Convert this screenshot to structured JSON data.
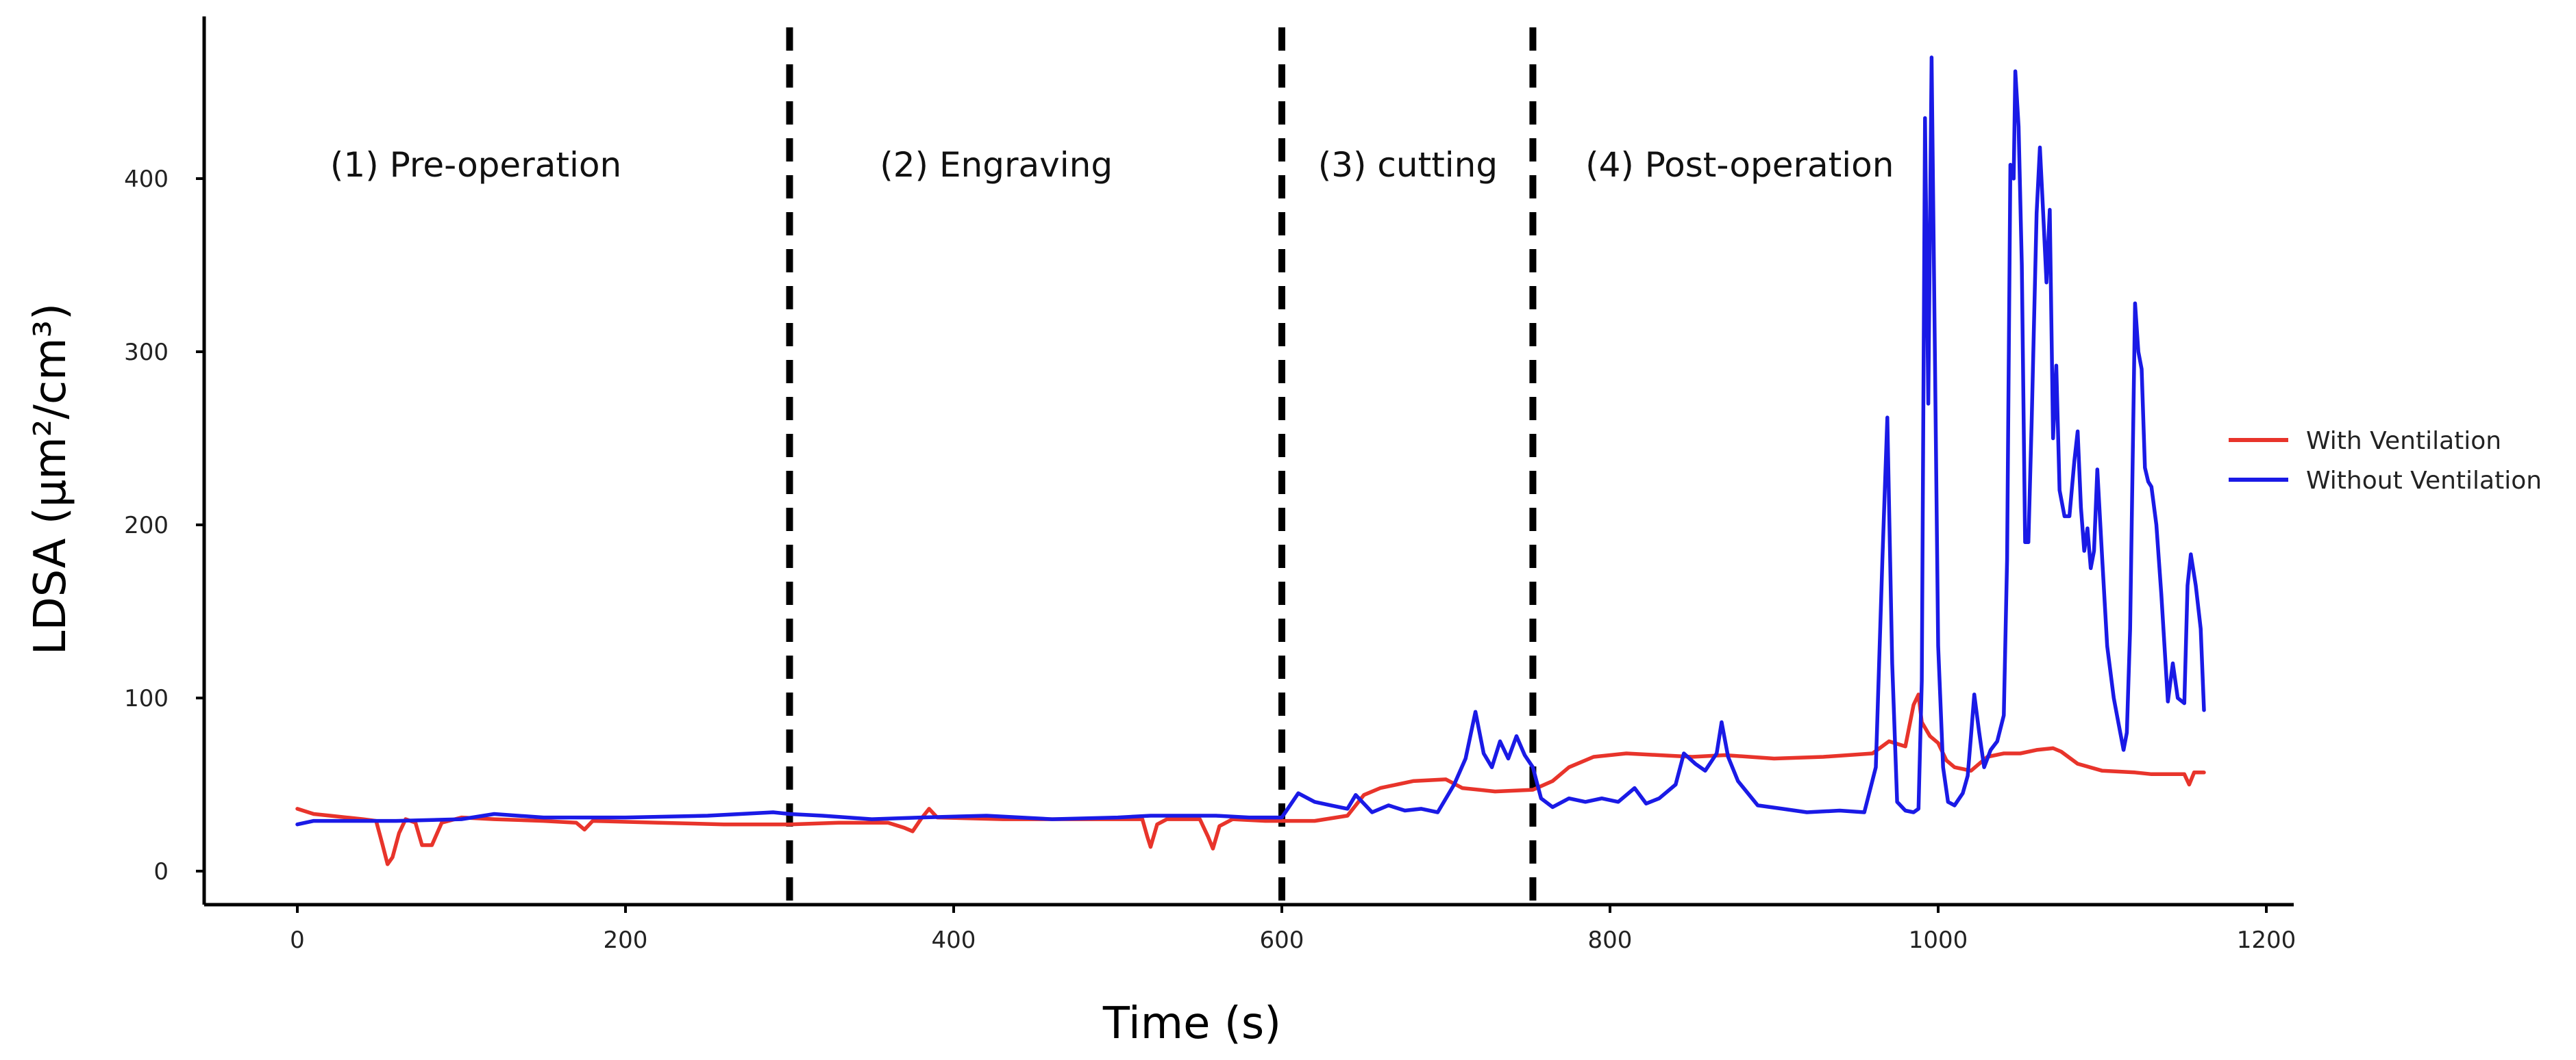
{
  "chart_data": {
    "type": "line",
    "xlabel": "Time (s)",
    "ylabel": "LDSA (μm²/cm³)",
    "xlim": [
      -55,
      1200
    ],
    "ylim": [
      -18,
      480
    ],
    "x_ticks": [
      0,
      200,
      400,
      600,
      800,
      1000,
      1200
    ],
    "y_ticks": [
      0,
      100,
      200,
      300,
      400
    ],
    "phase_boundaries": [
      300,
      600,
      753
    ],
    "phases": [
      {
        "label": "(1) Pre-operation",
        "x_start": 20,
        "y": 408
      },
      {
        "label": "(2) Engraving",
        "x_start": 355,
        "y": 408
      },
      {
        "label": "(3) cutting",
        "x_start": 622,
        "y": 408
      },
      {
        "label": "(4) Post-operation",
        "x_start": 785,
        "y": 408
      }
    ],
    "colors": {
      "with_ventilation": "#e8342b",
      "without_ventilation": "#1a1ae6",
      "axis": "#000000"
    },
    "series": [
      {
        "name": "With Ventilation",
        "color": "#e8342b",
        "points": [
          [
            0,
            36
          ],
          [
            10,
            33
          ],
          [
            20,
            32
          ],
          [
            30,
            31
          ],
          [
            40,
            30
          ],
          [
            48,
            29
          ],
          [
            52,
            15
          ],
          [
            55,
            4
          ],
          [
            58,
            8
          ],
          [
            62,
            22
          ],
          [
            66,
            30
          ],
          [
            72,
            28
          ],
          [
            76,
            15
          ],
          [
            82,
            15
          ],
          [
            88,
            28
          ],
          [
            100,
            31
          ],
          [
            120,
            30
          ],
          [
            150,
            29
          ],
          [
            170,
            28
          ],
          [
            175,
            24
          ],
          [
            180,
            29
          ],
          [
            220,
            28
          ],
          [
            260,
            27
          ],
          [
            300,
            27
          ],
          [
            330,
            28
          ],
          [
            360,
            28
          ],
          [
            370,
            25
          ],
          [
            375,
            23
          ],
          [
            380,
            30
          ],
          [
            385,
            36
          ],
          [
            390,
            31
          ],
          [
            430,
            30
          ],
          [
            480,
            30
          ],
          [
            500,
            30
          ],
          [
            515,
            30
          ],
          [
            518,
            20
          ],
          [
            520,
            14
          ],
          [
            524,
            27
          ],
          [
            530,
            30
          ],
          [
            550,
            30
          ],
          [
            555,
            20
          ],
          [
            558,
            13
          ],
          [
            562,
            26
          ],
          [
            570,
            30
          ],
          [
            590,
            29
          ],
          [
            600,
            29
          ],
          [
            620,
            29
          ],
          [
            640,
            32
          ],
          [
            650,
            44
          ],
          [
            660,
            48
          ],
          [
            680,
            52
          ],
          [
            700,
            53
          ],
          [
            710,
            48
          ],
          [
            730,
            46
          ],
          [
            753,
            47
          ],
          [
            765,
            52
          ],
          [
            775,
            60
          ],
          [
            790,
            66
          ],
          [
            810,
            68
          ],
          [
            830,
            67
          ],
          [
            850,
            66
          ],
          [
            870,
            67
          ],
          [
            900,
            65
          ],
          [
            930,
            66
          ],
          [
            960,
            68
          ],
          [
            970,
            75
          ],
          [
            980,
            72
          ],
          [
            985,
            96
          ],
          [
            988,
            102
          ],
          [
            990,
            86
          ],
          [
            995,
            78
          ],
          [
            1000,
            74
          ],
          [
            1005,
            64
          ],
          [
            1010,
            60
          ],
          [
            1020,
            58
          ],
          [
            1030,
            66
          ],
          [
            1040,
            68
          ],
          [
            1050,
            68
          ],
          [
            1060,
            70
          ],
          [
            1070,
            71
          ],
          [
            1075,
            69
          ],
          [
            1085,
            62
          ],
          [
            1100,
            58
          ],
          [
            1120,
            57
          ],
          [
            1130,
            56
          ],
          [
            1140,
            56
          ],
          [
            1150,
            56
          ],
          [
            1153,
            50
          ],
          [
            1156,
            57
          ],
          [
            1162,
            57
          ]
        ]
      },
      {
        "name": "Without Ventilation",
        "color": "#1a1ae6",
        "points": [
          [
            0,
            27
          ],
          [
            10,
            29
          ],
          [
            30,
            29
          ],
          [
            60,
            29
          ],
          [
            100,
            30
          ],
          [
            120,
            33
          ],
          [
            150,
            31
          ],
          [
            200,
            31
          ],
          [
            250,
            32
          ],
          [
            270,
            33
          ],
          [
            290,
            34
          ],
          [
            300,
            33
          ],
          [
            320,
            32
          ],
          [
            350,
            30
          ],
          [
            380,
            31
          ],
          [
            420,
            32
          ],
          [
            460,
            30
          ],
          [
            500,
            31
          ],
          [
            520,
            32
          ],
          [
            560,
            32
          ],
          [
            580,
            31
          ],
          [
            600,
            31
          ],
          [
            610,
            45
          ],
          [
            620,
            40
          ],
          [
            630,
            38
          ],
          [
            640,
            36
          ],
          [
            645,
            44
          ],
          [
            655,
            34
          ],
          [
            665,
            38
          ],
          [
            675,
            35
          ],
          [
            685,
            36
          ],
          [
            695,
            34
          ],
          [
            705,
            50
          ],
          [
            712,
            65
          ],
          [
            718,
            92
          ],
          [
            723,
            68
          ],
          [
            728,
            60
          ],
          [
            733,
            75
          ],
          [
            738,
            65
          ],
          [
            743,
            78
          ],
          [
            748,
            67
          ],
          [
            753,
            60
          ],
          [
            758,
            42
          ],
          [
            765,
            37
          ],
          [
            775,
            42
          ],
          [
            785,
            40
          ],
          [
            795,
            42
          ],
          [
            805,
            40
          ],
          [
            815,
            48
          ],
          [
            822,
            39
          ],
          [
            830,
            42
          ],
          [
            840,
            50
          ],
          [
            845,
            68
          ],
          [
            852,
            62
          ],
          [
            858,
            58
          ],
          [
            865,
            68
          ],
          [
            868,
            86
          ],
          [
            872,
            66
          ],
          [
            878,
            52
          ],
          [
            890,
            38
          ],
          [
            905,
            36
          ],
          [
            920,
            34
          ],
          [
            940,
            35
          ],
          [
            955,
            34
          ],
          [
            962,
            60
          ],
          [
            966,
            180
          ],
          [
            969,
            262
          ],
          [
            972,
            120
          ],
          [
            975,
            40
          ],
          [
            980,
            35
          ],
          [
            985,
            34
          ],
          [
            988,
            36
          ],
          [
            990,
            110
          ],
          [
            992,
            435
          ],
          [
            994,
            270
          ],
          [
            996,
            470
          ],
          [
            998,
            300
          ],
          [
            1000,
            130
          ],
          [
            1003,
            60
          ],
          [
            1006,
            40
          ],
          [
            1010,
            38
          ],
          [
            1015,
            45
          ],
          [
            1018,
            55
          ],
          [
            1020,
            78
          ],
          [
            1022,
            102
          ],
          [
            1025,
            80
          ],
          [
            1028,
            60
          ],
          [
            1032,
            70
          ],
          [
            1036,
            75
          ],
          [
            1040,
            90
          ],
          [
            1042,
            180
          ],
          [
            1044,
            408
          ],
          [
            1046,
            400
          ],
          [
            1047,
            462
          ],
          [
            1049,
            430
          ],
          [
            1051,
            350
          ],
          [
            1053,
            190
          ],
          [
            1055,
            190
          ],
          [
            1057,
            260
          ],
          [
            1060,
            380
          ],
          [
            1062,
            418
          ],
          [
            1064,
            380
          ],
          [
            1066,
            340
          ],
          [
            1068,
            382
          ],
          [
            1070,
            250
          ],
          [
            1072,
            292
          ],
          [
            1074,
            220
          ],
          [
            1077,
            205
          ],
          [
            1080,
            205
          ],
          [
            1083,
            237
          ],
          [
            1085,
            254
          ],
          [
            1087,
            210
          ],
          [
            1089,
            185
          ],
          [
            1091,
            198
          ],
          [
            1093,
            175
          ],
          [
            1095,
            185
          ],
          [
            1097,
            232
          ],
          [
            1100,
            180
          ],
          [
            1103,
            130
          ],
          [
            1107,
            100
          ],
          [
            1110,
            85
          ],
          [
            1113,
            70
          ],
          [
            1115,
            80
          ],
          [
            1117,
            140
          ],
          [
            1120,
            328
          ],
          [
            1122,
            300
          ],
          [
            1124,
            290
          ],
          [
            1126,
            233
          ],
          [
            1128,
            225
          ],
          [
            1130,
            222
          ],
          [
            1133,
            200
          ],
          [
            1136,
            160
          ],
          [
            1140,
            98
          ],
          [
            1143,
            120
          ],
          [
            1146,
            100
          ],
          [
            1150,
            97
          ],
          [
            1152,
            165
          ],
          [
            1154,
            183
          ],
          [
            1157,
            165
          ],
          [
            1160,
            140
          ],
          [
            1162,
            93
          ]
        ]
      }
    ]
  }
}
